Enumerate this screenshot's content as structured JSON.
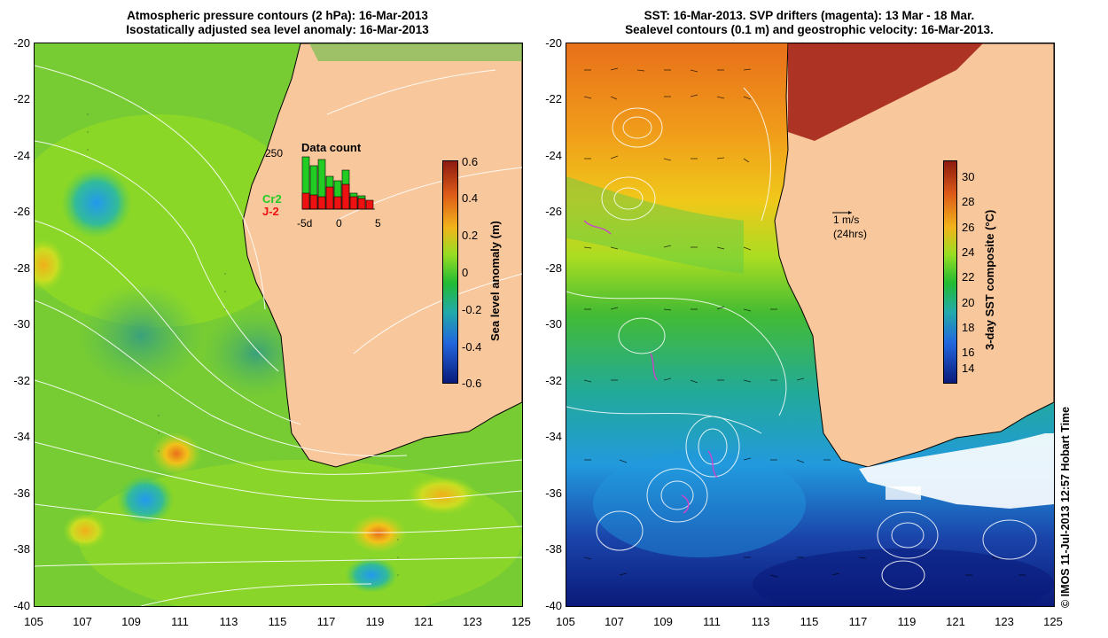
{
  "left_panel": {
    "title_line1": "Atmospheric pressure contours (2 hPa): 16-Mar-2013",
    "title_line2": "Isostatically adjusted sea level anomaly: 16-Mar-2013",
    "colorbar": {
      "label": "Sea level anomaly (m)",
      "ticks": [
        "0.6",
        "0.4",
        "0.2",
        "0",
        "-0.2",
        "-0.4",
        "-0.6"
      ]
    },
    "inset": {
      "title": "Data count",
      "max_label": "250",
      "x_ticks": [
        "-5d",
        "0",
        "5"
      ],
      "series": [
        {
          "name": "Cr2",
          "color": "#22cc22"
        },
        {
          "name": "J-2",
          "color": "#ee1111"
        }
      ]
    }
  },
  "right_panel": {
    "title_line1": "SST: 16-Mar-2013. SVP drifters (magenta): 13 Mar - 18 Mar.",
    "title_line2": "Sealevel contours (0.1 m) and geostrophic velocity: 16-Mar-2013.",
    "colorbar": {
      "label": "3-day SST composite (°C)",
      "ticks": [
        "30",
        "28",
        "26",
        "24",
        "22",
        "20",
        "18",
        "16",
        "14"
      ]
    },
    "scale_arrow": {
      "line1": "1 m/s",
      "line2": "(24hrs)"
    }
  },
  "axes": {
    "y_ticks": [
      "-20",
      "-22",
      "-24",
      "-26",
      "-28",
      "-30",
      "-32",
      "-34",
      "-36",
      "-38",
      "-40"
    ],
    "x_ticks": [
      "105",
      "107",
      "109",
      "111",
      "113",
      "115",
      "117",
      "119",
      "121",
      "123",
      "125"
    ]
  },
  "credit": "© IMOS 11-Jul-2013 12:57 Hobart Time",
  "colors": {
    "land": "#f8c79b",
    "ocean_green": "#66cc22",
    "warm": "#e8701a",
    "cold": "#1a3aa8"
  }
}
